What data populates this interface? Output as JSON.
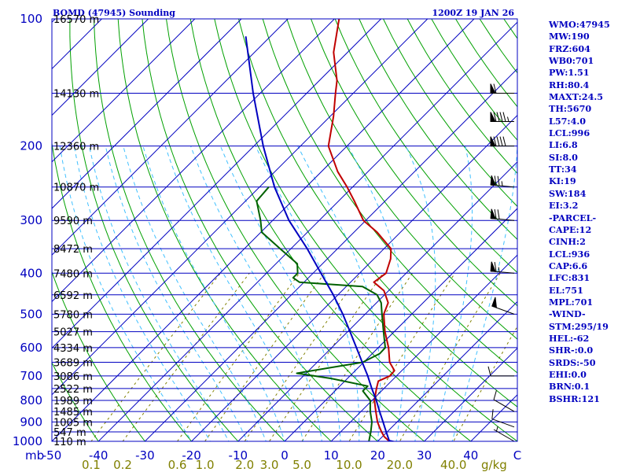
{
  "header": {
    "station": "BOMD (47945) Sounding",
    "time": "1200Z 19 JAN 26"
  },
  "colors": {
    "frame": "#0000c0",
    "isobar": "#0000c0",
    "isotherm": "#0000c0",
    "dry_adiabat": "#00a000",
    "moist_adiabat": "#40c0ff",
    "mixing_ratio": "#808000",
    "temperature": "#c00000",
    "dewpoint": "#006000",
    "parcel": "#0000c0",
    "wind": "#000000"
  },
  "indices": [
    "WMO:47945",
    "MW:190",
    "FRZ:604",
    "WB0:701",
    "PW:1.51",
    "RH:80.4",
    "MAXT:24.5",
    "TH:5670",
    "L57:4.0",
    "LCL:996",
    "LI:6.8",
    "SI:8.0",
    "TT:34",
    "KI:19",
    "SW:184",
    "EI:3.2",
    "-PARCEL-",
    "CAPE:12",
    "CINH:2",
    "LCL:936",
    "CAP:6.6",
    "LFC:831",
    "EL:751",
    "MPL:701",
    "-WIND-",
    "STM:295/19",
    "HEL:-62",
    "SHR-:0.0",
    "SRDS:-50",
    "EHI:0.0",
    "BRN:0.1",
    "BSHR:121"
  ],
  "chart_data": {
    "type": "line",
    "diagram": "skew-t log-p",
    "yscale": "log",
    "ylim": [
      1000,
      100
    ],
    "xlim": [
      -50,
      50
    ],
    "pressure_unit_label": "mb",
    "mixing_ratio_unit_label": "g/kg",
    "pressure_ticks": [
      {
        "p": 100,
        "label": "100"
      },
      {
        "p": 200,
        "label": "200"
      },
      {
        "p": 300,
        "label": "300"
      },
      {
        "p": 400,
        "label": "400"
      },
      {
        "p": 500,
        "label": "500"
      },
      {
        "p": 600,
        "label": "600"
      },
      {
        "p": 700,
        "label": "700"
      },
      {
        "p": 800,
        "label": "800"
      },
      {
        "p": 900,
        "label": "900"
      },
      {
        "p": 1000,
        "label": "1000"
      }
    ],
    "temperature_ticks": [
      {
        "t": -50,
        "label": "-50"
      },
      {
        "t": -40,
        "label": "-40"
      },
      {
        "t": -30,
        "label": "-30"
      },
      {
        "t": -20,
        "label": "-20"
      },
      {
        "t": -10,
        "label": "-10"
      },
      {
        "t": 0,
        "label": "0"
      },
      {
        "t": 10,
        "label": "10"
      },
      {
        "t": 20,
        "label": "20"
      },
      {
        "t": 30,
        "label": "30"
      },
      {
        "t": 40,
        "label": "40"
      },
      {
        "t": 50,
        "label": "C"
      }
    ],
    "mixing_ratio_ticks": [
      {
        "w": 0.1,
        "label": "0.1"
      },
      {
        "w": 0.2,
        "label": "0.2"
      },
      {
        "w": 0.6,
        "label": "0.6"
      },
      {
        "w": 1.0,
        "label": "1.0"
      },
      {
        "w": 2.0,
        "label": "2.0"
      },
      {
        "w": 3.0,
        "label": "3.0"
      },
      {
        "w": 5.0,
        "label": "5.0"
      },
      {
        "w": 10.0,
        "label": "10.0"
      },
      {
        "w": 20.0,
        "label": "20.0"
      },
      {
        "w": 40.0,
        "label": "40.0"
      }
    ],
    "height_levels": [
      {
        "p": 100,
        "label": "16570 m"
      },
      {
        "p": 150,
        "label": "14130 m"
      },
      {
        "p": 200,
        "label": "12360 m"
      },
      {
        "p": 250,
        "label": "10870 m"
      },
      {
        "p": 300,
        "label": "9590 m"
      },
      {
        "p": 350,
        "label": "8472 m"
      },
      {
        "p": 400,
        "label": "7480 m"
      },
      {
        "p": 450,
        "label": "6592 m"
      },
      {
        "p": 500,
        "label": "5780 m"
      },
      {
        "p": 550,
        "label": "5027 m"
      },
      {
        "p": 600,
        "label": "4334 m"
      },
      {
        "p": 650,
        "label": "3689 m"
      },
      {
        "p": 700,
        "label": "3086 m"
      },
      {
        "p": 750,
        "label": "2522 m"
      },
      {
        "p": 800,
        "label": "1989 m"
      },
      {
        "p": 850,
        "label": "1485 m"
      },
      {
        "p": 900,
        "label": "1005 m"
      },
      {
        "p": 950,
        "label": "547 m"
      },
      {
        "p": 1000,
        "label": "110 m"
      }
    ],
    "series": [
      {
        "key": "temperature",
        "points": [
          {
            "p": 1006,
            "t": 24.5
          },
          {
            "p": 1000,
            "t": 22.5
          },
          {
            "p": 975,
            "t": 20.4
          },
          {
            "p": 950,
            "t": 18.8
          },
          {
            "p": 925,
            "t": 17.3
          },
          {
            "p": 900,
            "t": 15.8
          },
          {
            "p": 850,
            "t": 13.2
          },
          {
            "p": 800,
            "t": 10.5
          },
          {
            "p": 750,
            "t": 8.4
          },
          {
            "p": 720,
            "t": 7.2
          },
          {
            "p": 700,
            "t": 8.6
          },
          {
            "p": 680,
            "t": 8.4
          },
          {
            "p": 650,
            "t": 5.6
          },
          {
            "p": 600,
            "t": 2.2
          },
          {
            "p": 550,
            "t": -2.0
          },
          {
            "p": 500,
            "t": -6.0
          },
          {
            "p": 470,
            "t": -7.5
          },
          {
            "p": 440,
            "t": -11.0
          },
          {
            "p": 420,
            "t": -15.0
          },
          {
            "p": 400,
            "t": -14.3
          },
          {
            "p": 370,
            "t": -16.4
          },
          {
            "p": 350,
            "t": -18.5
          },
          {
            "p": 320,
            "t": -25.0
          },
          {
            "p": 300,
            "t": -30.5
          },
          {
            "p": 270,
            "t": -36.6
          },
          {
            "p": 250,
            "t": -41.2
          },
          {
            "p": 230,
            "t": -46.5
          },
          {
            "p": 200,
            "t": -54.0
          },
          {
            "p": 170,
            "t": -59.3
          },
          {
            "p": 150,
            "t": -63.8
          },
          {
            "p": 140,
            "t": -66.2
          },
          {
            "p": 120,
            "t": -73.0
          },
          {
            "p": 100,
            "t": -79.0
          }
        ]
      },
      {
        "key": "dewpoint",
        "points": [
          {
            "p": 1006,
            "t": 18.6
          },
          {
            "p": 1000,
            "t": 18.1
          },
          {
            "p": 950,
            "t": 16.5
          },
          {
            "p": 900,
            "t": 14.6
          },
          {
            "p": 850,
            "t": 12.0
          },
          {
            "p": 800,
            "t": 9.6
          },
          {
            "p": 760,
            "t": 6.0
          },
          {
            "p": 740,
            "t": 6.0
          },
          {
            "p": 710,
            "t": -3.5
          },
          {
            "p": 690,
            "t": -12.0
          },
          {
            "p": 650,
            "t": -0.2
          },
          {
            "p": 620,
            "t": 1.6
          },
          {
            "p": 600,
            "t": 1.5
          },
          {
            "p": 550,
            "t": -2.3
          },
          {
            "p": 500,
            "t": -6.4
          },
          {
            "p": 470,
            "t": -9.0
          },
          {
            "p": 450,
            "t": -11.6
          },
          {
            "p": 430,
            "t": -16.5
          },
          {
            "p": 420,
            "t": -31.0
          },
          {
            "p": 410,
            "t": -33.3
          },
          {
            "p": 400,
            "t": -33.3
          },
          {
            "p": 380,
            "t": -35.4
          },
          {
            "p": 350,
            "t": -42.3
          },
          {
            "p": 320,
            "t": -49.8
          },
          {
            "p": 300,
            "t": -52.6
          },
          {
            "p": 270,
            "t": -57.6
          },
          {
            "p": 250,
            "t": -58.0
          }
        ]
      },
      {
        "key": "parcel",
        "points": [
          {
            "p": 1006,
            "t": 24.5
          },
          {
            "p": 996,
            "t": 22.3
          },
          {
            "p": 950,
            "t": 19.8
          },
          {
            "p": 900,
            "t": 17.0
          },
          {
            "p": 850,
            "t": 14.0
          },
          {
            "p": 800,
            "t": 10.9
          },
          {
            "p": 750,
            "t": 7.4
          },
          {
            "p": 700,
            "t": 3.8
          },
          {
            "p": 650,
            "t": -0.3
          },
          {
            "p": 600,
            "t": -4.7
          },
          {
            "p": 550,
            "t": -9.5
          },
          {
            "p": 500,
            "t": -14.8
          },
          {
            "p": 450,
            "t": -21.0
          },
          {
            "p": 400,
            "t": -28.3
          },
          {
            "p": 350,
            "t": -36.5
          },
          {
            "p": 300,
            "t": -46.5
          },
          {
            "p": 250,
            "t": -56.8
          },
          {
            "p": 200,
            "t": -68.0
          },
          {
            "p": 150,
            "t": -81.5
          },
          {
            "p": 110,
            "t": -95.3
          }
        ]
      }
    ],
    "wind_barbs": [
      {
        "p": 1000,
        "dir": 300,
        "speed": 5
      },
      {
        "p": 925,
        "dir": 290,
        "speed": 10
      },
      {
        "p": 850,
        "dir": 300,
        "speed": 10
      },
      {
        "p": 700,
        "dir": 270,
        "speed": 10
      },
      {
        "p": 500,
        "dir": 290,
        "speed": 50
      },
      {
        "p": 400,
        "dir": 275,
        "speed": 65
      },
      {
        "p": 300,
        "dir": 275,
        "speed": 70
      },
      {
        "p": 250,
        "dir": 275,
        "speed": 75
      },
      {
        "p": 200,
        "dir": 270,
        "speed": 90
      },
      {
        "p": 175,
        "dir": 270,
        "speed": 95
      },
      {
        "p": 150,
        "dir": 270,
        "speed": 60
      }
    ]
  }
}
